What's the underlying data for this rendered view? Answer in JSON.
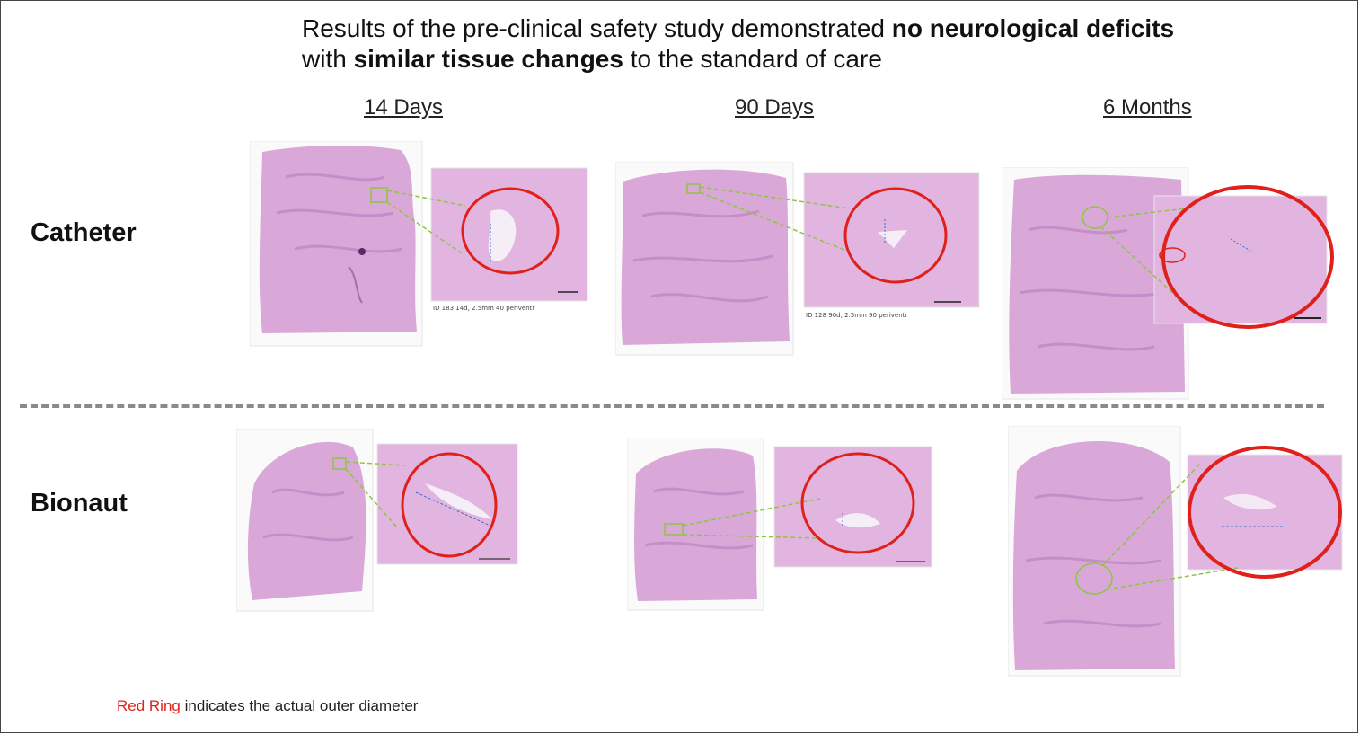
{
  "headline": {
    "part1": "Results of the pre-clinical safety study demonstrated ",
    "bold1": "no neurological deficits",
    "part2": "with ",
    "bold2": "similar tissue changes",
    "part3": " to the standard of care"
  },
  "columns": [
    "14 Days",
    "90 Days",
    "6 Months"
  ],
  "rows": [
    "Catheter",
    "Bionaut"
  ],
  "legend": {
    "highlight": "Red Ring",
    "text": " indicates the actual outer diameter"
  },
  "captions": {
    "catheter_14": "ID 183 14d, 2.5mm 40 periventr",
    "catheter_90": "ID 128 90d, 2.5mm 90 periventr"
  },
  "colors": {
    "tissue": "#d8a6d6",
    "tissue_dark": "#c88fcb",
    "ring": "#e0201a",
    "pointer": "#8cc63f",
    "divider": "#8a8a8a"
  }
}
